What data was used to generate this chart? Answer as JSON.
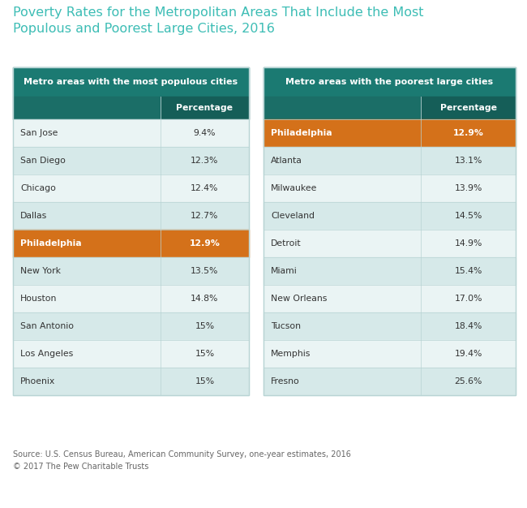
{
  "title": "Poverty Rates for the Metropolitan Areas That Include the Most\nPopulous and Poorest Large Cities, 2016",
  "title_color": "#3dbdb5",
  "title_fontsize": 11.5,
  "source_text": "Source: U.S. Census Bureau, American Community Survey, one-year estimates, 2016\n© 2017 The Pew Charitable Trusts",
  "left_table": {
    "header": "Metro areas with the most populous cities",
    "col2_header": "Percentage",
    "header_bg": "#1b7a72",
    "header_text_color": "#ffffff",
    "rows": [
      {
        "city": "San Jose",
        "value": "9.4%",
        "highlight": false
      },
      {
        "city": "San Diego",
        "value": "12.3%",
        "highlight": false
      },
      {
        "city": "Chicago",
        "value": "12.4%",
        "highlight": false
      },
      {
        "city": "Dallas",
        "value": "12.7%",
        "highlight": false
      },
      {
        "city": "Philadelphia",
        "value": "12.9%",
        "highlight": true
      },
      {
        "city": "New York",
        "value": "13.5%",
        "highlight": false
      },
      {
        "city": "Houston",
        "value": "14.8%",
        "highlight": false
      },
      {
        "city": "San Antonio",
        "value": "15%",
        "highlight": false
      },
      {
        "city": "Los Angeles",
        "value": "15%",
        "highlight": false
      },
      {
        "city": "Phoenix",
        "value": "15%",
        "highlight": false
      }
    ]
  },
  "right_table": {
    "header": "Metro areas with the poorest large cities",
    "col2_header": "Percentage",
    "header_bg": "#1b7a72",
    "header_text_color": "#ffffff",
    "rows": [
      {
        "city": "Philadelphia",
        "value": "12.9%",
        "highlight": true
      },
      {
        "city": "Atlanta",
        "value": "13.1%",
        "highlight": false
      },
      {
        "city": "Milwaukee",
        "value": "13.9%",
        "highlight": false
      },
      {
        "city": "Cleveland",
        "value": "14.5%",
        "highlight": false
      },
      {
        "city": "Detroit",
        "value": "14.9%",
        "highlight": false
      },
      {
        "city": "Miami",
        "value": "15.4%",
        "highlight": false
      },
      {
        "city": "New Orleans",
        "value": "17.0%",
        "highlight": false
      },
      {
        "city": "Tucson",
        "value": "18.4%",
        "highlight": false
      },
      {
        "city": "Memphis",
        "value": "19.4%",
        "highlight": false
      },
      {
        "city": "Fresno",
        "value": "25.6%",
        "highlight": false
      }
    ]
  },
  "highlight_color": "#d4711a",
  "row_even_bg": "#d6e9e9",
  "row_odd_bg": "#eaf4f4",
  "row_text_color": "#333333",
  "highlight_text_color": "#ffffff",
  "background_color": "#ffffff",
  "divider_color": "#b8d4d4",
  "font_family": "DejaVu Sans"
}
